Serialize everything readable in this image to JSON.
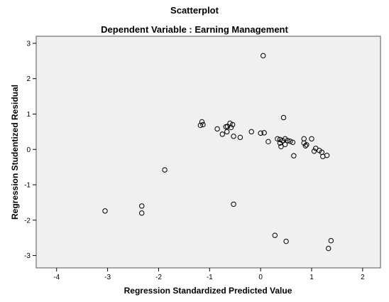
{
  "chart_data": {
    "type": "scatter",
    "title": "Scatterplot",
    "subtitle": "Dependent Variable : Earning Management",
    "xlabel": "Regression Standardized Predicted Value",
    "ylabel": "Regression Studentized Residual",
    "xlim": [
      -4.4,
      2.35
    ],
    "ylim": [
      -3.35,
      3.2
    ],
    "xticks": [
      -4,
      -3,
      -2,
      -1,
      0,
      1,
      2
    ],
    "yticks": [
      -3,
      -2,
      -1,
      0,
      1,
      2,
      3
    ],
    "grid": false,
    "legend": "none",
    "colors": {
      "plot_background": "#f0f0f0",
      "marker_stroke": "#000000"
    },
    "points": [
      {
        "x": 0.05,
        "y": 2.65
      },
      {
        "x": 0.45,
        "y": 0.9
      },
      {
        "x": -1.15,
        "y": 0.78
      },
      {
        "x": -1.18,
        "y": 0.68
      },
      {
        "x": -1.13,
        "y": 0.7
      },
      {
        "x": -0.85,
        "y": 0.58
      },
      {
        "x": -0.6,
        "y": 0.74
      },
      {
        "x": -0.55,
        "y": 0.7
      },
      {
        "x": -0.65,
        "y": 0.65
      },
      {
        "x": -0.68,
        "y": 0.64
      },
      {
        "x": -0.58,
        "y": 0.62
      },
      {
        "x": -0.66,
        "y": 0.5
      },
      {
        "x": -0.75,
        "y": 0.43
      },
      {
        "x": -0.53,
        "y": 0.37
      },
      {
        "x": -0.4,
        "y": 0.34
      },
      {
        "x": -0.18,
        "y": 0.5
      },
      {
        "x": 0.0,
        "y": 0.46
      },
      {
        "x": 0.07,
        "y": 0.47
      },
      {
        "x": 0.33,
        "y": 0.3
      },
      {
        "x": 0.38,
        "y": 0.28
      },
      {
        "x": 0.43,
        "y": 0.25
      },
      {
        "x": 0.48,
        "y": 0.3
      },
      {
        "x": 0.53,
        "y": 0.25
      },
      {
        "x": 0.58,
        "y": 0.23
      },
      {
        "x": 0.63,
        "y": 0.2
      },
      {
        "x": 0.15,
        "y": 0.22
      },
      {
        "x": 0.38,
        "y": 0.18
      },
      {
        "x": 0.48,
        "y": 0.14
      },
      {
        "x": 0.4,
        "y": 0.08
      },
      {
        "x": 0.65,
        "y": -0.18
      },
      {
        "x": 0.85,
        "y": 0.3
      },
      {
        "x": 0.85,
        "y": 0.18
      },
      {
        "x": 0.9,
        "y": 0.13
      },
      {
        "x": 0.88,
        "y": 0.1
      },
      {
        "x": 1.0,
        "y": 0.3
      },
      {
        "x": 1.08,
        "y": 0.03
      },
      {
        "x": 1.05,
        "y": -0.05
      },
      {
        "x": 1.15,
        "y": -0.03
      },
      {
        "x": 1.2,
        "y": -0.08
      },
      {
        "x": 1.22,
        "y": -0.2
      },
      {
        "x": 1.3,
        "y": -0.17
      },
      {
        "x": -1.88,
        "y": -0.58
      },
      {
        "x": -2.33,
        "y": -1.6
      },
      {
        "x": -2.33,
        "y": -1.8
      },
      {
        "x": -3.05,
        "y": -1.74
      },
      {
        "x": -0.53,
        "y": -1.55
      },
      {
        "x": 0.28,
        "y": -2.43
      },
      {
        "x": 0.5,
        "y": -2.6
      },
      {
        "x": 1.38,
        "y": -2.58
      },
      {
        "x": 1.33,
        "y": -2.8
      }
    ]
  }
}
